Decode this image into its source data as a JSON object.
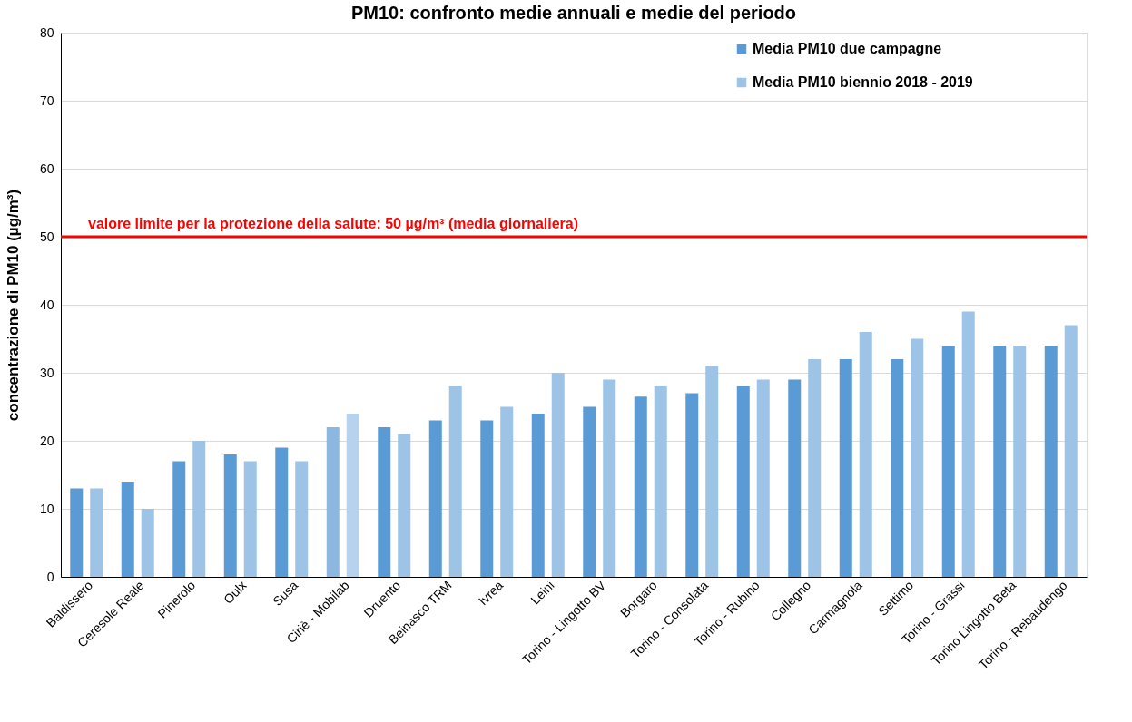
{
  "chart_data": {
    "type": "bar",
    "title": "PM10: confronto medie annuali e medie del periodo",
    "ylabel": "concentrazione di PM10 (µg/m³)",
    "categories": [
      "Baldissero",
      "Ceresole Reale",
      "Pinerolo",
      "Oulx",
      "Susa",
      "Ciriè - Mobilab",
      "Druento",
      "Beinasco TRM",
      "Ivrea",
      "Leini",
      "Torino - Lingotto BV",
      "Borgaro",
      "Torino - Consolata",
      "Torino - Rubino",
      "Collegno",
      "Carmagnola",
      "Settimo",
      "Torino - Grassi",
      "Torino Lingotto Beta",
      "Torino - Rebaudengo"
    ],
    "series": [
      {
        "name": "Media PM10  due campagne",
        "color": "#5b9bd5",
        "colors": [
          "#5b9bd5",
          "#5b9bd5",
          "#5b9bd5",
          "#5b9bd5",
          "#5b9bd5",
          "#8db6e1",
          "#5b9bd5",
          "#5b9bd5",
          "#5b9bd5",
          "#5b9bd5",
          "#5b9bd5",
          "#5b9bd5",
          "#5b9bd5",
          "#5b9bd5",
          "#5b9bd5",
          "#5b9bd5",
          "#5b9bd5",
          "#5b9bd5",
          "#5b9bd5",
          "#5b9bd5"
        ],
        "values": [
          13,
          14,
          17,
          18,
          19,
          22,
          22,
          23,
          23,
          24,
          25,
          26.5,
          27,
          28,
          29,
          32,
          32,
          34,
          34,
          34
        ]
      },
      {
        "name": "Media PM10 biennio 2018 - 2019",
        "color": "#9dc3e6",
        "colors": [
          "#9dc3e6",
          "#9dc3e6",
          "#9dc3e6",
          "#9dc3e6",
          "#9dc3e6",
          "#b6d2ec",
          "#9dc3e6",
          "#9dc3e6",
          "#9dc3e6",
          "#9dc3e6",
          "#9dc3e6",
          "#9dc3e6",
          "#9dc3e6",
          "#9dc3e6",
          "#9dc3e6",
          "#9dc3e6",
          "#9dc3e6",
          "#9dc3e6",
          "#9dc3e6",
          "#9dc3e6"
        ],
        "values": [
          13,
          10,
          20,
          17,
          17,
          24,
          21,
          28,
          25,
          30,
          29,
          28,
          31,
          29,
          32,
          36,
          35,
          39,
          34,
          37
        ]
      }
    ],
    "ylim": [
      0,
      80
    ],
    "yticks": [
      0,
      10,
      20,
      30,
      40,
      50,
      60,
      70,
      80
    ],
    "grid": "y",
    "legend": "top right",
    "ref_lines": [
      {
        "axis": "y",
        "value": 50,
        "label": "valore limite per la protezione della salute: 50 µg/m³ (media giornaliera)",
        "color": "#ff0000"
      }
    ]
  }
}
